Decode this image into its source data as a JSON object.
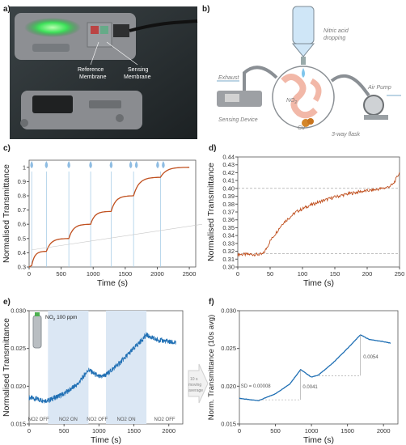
{
  "panels": {
    "a": {
      "letter": "a)",
      "labels": [
        "Reference",
        "Membrane",
        "Sensing",
        "Membrane"
      ]
    },
    "b": {
      "letter": "b)",
      "labels": {
        "nitric": "Nitric acid",
        "dropping": "dropping",
        "exhaust": "Exhaust",
        "air_pump": "Air Pump",
        "no2": "NO",
        "no2_sub": "2",
        "cu": "Cu",
        "sensing_device": "Sensing Device",
        "flask": "3-way flask"
      }
    },
    "c": {
      "letter": "c)"
    },
    "d": {
      "letter": "d)"
    },
    "e": {
      "letter": "e)",
      "cylinder_label": "NO",
      "cylinder_sub": "2",
      "cylinder_conc": " 100 ppm",
      "phase_labels": [
        "NO2 OFF",
        "NO2 ON",
        "NO2 OFF",
        "NO2 ON",
        "NO2 OFF"
      ]
    },
    "f": {
      "letter": "f)"
    },
    "arrow_text": [
      "10 s",
      "moving",
      "average"
    ]
  },
  "chart_data": [
    {
      "panel": "c",
      "type": "line",
      "xlabel": "Time (s)",
      "ylabel": "Normalised Transmittance",
      "xlim": [
        0,
        2600
      ],
      "ylim": [
        0.3,
        1.05
      ],
      "xticks": [
        0,
        500,
        1000,
        1500,
        2000,
        2500
      ],
      "yticks": [
        0.3,
        0.4,
        0.5,
        0.6,
        0.7,
        0.8,
        0.9,
        1.0
      ],
      "ytick_labels": [
        "0.3",
        "0.4",
        "0.5",
        "0.6",
        "0.7",
        "0.8",
        "0.9",
        "1"
      ],
      "drop_markers": [
        {
          "x": 40,
          "count": 1
        },
        {
          "x": 270,
          "count": 1
        },
        {
          "x": 620,
          "count": 1
        },
        {
          "x": 960,
          "count": 1
        },
        {
          "x": 1280,
          "count": 1
        },
        {
          "x": 1630,
          "count": 2
        },
        {
          "x": 2050,
          "count": 2
        }
      ],
      "steps": [
        {
          "t0": 40,
          "t1": 270,
          "y0": 0.31,
          "y1": 0.41
        },
        {
          "t0": 270,
          "t1": 620,
          "y0": 0.41,
          "y1": 0.5
        },
        {
          "t0": 620,
          "t1": 960,
          "y0": 0.5,
          "y1": 0.6
        },
        {
          "t0": 960,
          "t1": 1280,
          "y0": 0.6,
          "y1": 0.69
        },
        {
          "t0": 1280,
          "t1": 1630,
          "y0": 0.69,
          "y1": 0.8
        },
        {
          "t0": 1630,
          "t1": 2050,
          "y0": 0.8,
          "y1": 0.93
        },
        {
          "t0": 2050,
          "t1": 2500,
          "y0": 0.93,
          "y1": 1.0
        }
      ],
      "start": {
        "x": 0,
        "y": 0.3
      },
      "color": "#c0501f"
    },
    {
      "panel": "d",
      "type": "line",
      "xlabel": "Time (s)",
      "ylabel": "Normalised Transmittance",
      "xlim": [
        0,
        250
      ],
      "ylim": [
        0.3,
        0.44
      ],
      "xticks": [
        0,
        50,
        100,
        150,
        200,
        250
      ],
      "yticks": [
        0.3,
        0.31,
        0.32,
        0.33,
        0.34,
        0.35,
        0.36,
        0.37,
        0.38,
        0.39,
        0.4,
        0.41,
        0.42,
        0.43,
        0.44
      ],
      "ytick_labels": [
        "0.30",
        "0.31",
        "0.32",
        "0.33",
        "0.34",
        "0.35",
        "0.36",
        "0.37",
        "0.38",
        "0.39",
        "0.40",
        "0.41",
        "0.42",
        "0.43",
        "0.44"
      ],
      "ref_lines": [
        0.317,
        0.4
      ],
      "points": [
        [
          0,
          0.316
        ],
        [
          38,
          0.316
        ],
        [
          42,
          0.32
        ],
        [
          50,
          0.333
        ],
        [
          70,
          0.356
        ],
        [
          90,
          0.37
        ],
        [
          110,
          0.378
        ],
        [
          130,
          0.384
        ],
        [
          150,
          0.389
        ],
        [
          170,
          0.393
        ],
        [
          190,
          0.396
        ],
        [
          210,
          0.398
        ],
        [
          230,
          0.401
        ],
        [
          240,
          0.405
        ],
        [
          250,
          0.42
        ]
      ],
      "color": "#c0501f"
    },
    {
      "panel": "e",
      "type": "line",
      "xlabel": "Time (s)",
      "ylabel": "Normalised Transmittance",
      "xlim": [
        0,
        2200
      ],
      "ylim": [
        0.015,
        0.03
      ],
      "xticks": [
        0,
        500,
        1000,
        1500,
        2000
      ],
      "yticks": [
        0.015,
        0.02,
        0.025,
        0.03
      ],
      "ytick_labels": [
        "0.015",
        "0.020",
        "0.025",
        "0.030"
      ],
      "shaded": [
        [
          270,
          850
        ],
        [
          1100,
          1680
        ]
      ],
      "points": [
        [
          0,
          0.0185
        ],
        [
          150,
          0.0182
        ],
        [
          270,
          0.0181
        ],
        [
          500,
          0.019
        ],
        [
          700,
          0.0203
        ],
        [
          850,
          0.0222
        ],
        [
          1000,
          0.0212
        ],
        [
          1100,
          0.0215
        ],
        [
          1300,
          0.0231
        ],
        [
          1500,
          0.025
        ],
        [
          1680,
          0.0268
        ],
        [
          1800,
          0.0262
        ],
        [
          2000,
          0.0259
        ],
        [
          2100,
          0.0257
        ]
      ],
      "color": "#1f6fb4"
    },
    {
      "panel": "f",
      "type": "line",
      "xlabel": "Time (s)",
      "ylabel": "Norm. Transmittance (10s avg)",
      "xlim": [
        0,
        2200
      ],
      "ylim": [
        0.015,
        0.03
      ],
      "xticks": [
        0,
        500,
        1000,
        1500,
        2000
      ],
      "yticks": [
        0.015,
        0.02,
        0.025,
        0.03
      ],
      "ytick_labels": [
        "0.015",
        "0.020",
        "0.025",
        "0.030"
      ],
      "points": [
        [
          0,
          0.0184
        ],
        [
          150,
          0.0182
        ],
        [
          270,
          0.0181
        ],
        [
          500,
          0.019
        ],
        [
          700,
          0.0203
        ],
        [
          850,
          0.0222
        ],
        [
          1000,
          0.0212
        ],
        [
          1100,
          0.0215
        ],
        [
          1300,
          0.0231
        ],
        [
          1500,
          0.025
        ],
        [
          1680,
          0.0268
        ],
        [
          1800,
          0.0262
        ],
        [
          2000,
          0.0259
        ],
        [
          2100,
          0.0257
        ]
      ],
      "annotations": [
        "SD = 0.00008",
        "0.0041",
        "0.0054"
      ],
      "color": "#1f6fb4"
    }
  ]
}
